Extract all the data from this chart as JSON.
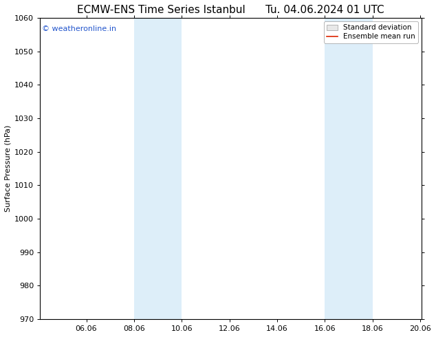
{
  "title_left": "ECMW-ENS Time Series Istanbul",
  "title_right": "Tu. 04.06.2024 01 UTC",
  "ylabel": "Surface Pressure (hPa)",
  "ylim": [
    970,
    1060
  ],
  "yticks": [
    970,
    980,
    990,
    1000,
    1010,
    1020,
    1030,
    1040,
    1050,
    1060
  ],
  "xlim_start": 4.06,
  "xlim_end": 20.06,
  "xtick_labels": [
    "06.06",
    "08.06",
    "10.06",
    "12.06",
    "14.06",
    "16.06",
    "18.06",
    "20.06"
  ],
  "xtick_positions": [
    6.0,
    8.0,
    10.0,
    12.0,
    14.0,
    16.0,
    18.0,
    20.0
  ],
  "shaded_bands": [
    {
      "x_start": 8.0,
      "x_end": 9.0
    },
    {
      "x_start": 9.0,
      "x_end": 10.0
    },
    {
      "x_start": 16.0,
      "x_end": 17.0
    },
    {
      "x_start": 17.0,
      "x_end": 18.0
    }
  ],
  "band_color": "#ddeef9",
  "background_color": "#ffffff",
  "watermark_text": "© weatheronline.in",
  "watermark_color": "#2255cc",
  "watermark_fontsize": 8,
  "legend_std_label": "Standard deviation",
  "legend_mean_label": "Ensemble mean run",
  "legend_std_facecolor": "#e8e8e8",
  "legend_std_edgecolor": "#999999",
  "legend_mean_color": "#dd2200",
  "title_fontsize": 11,
  "ylabel_fontsize": 8,
  "tick_fontsize": 8
}
